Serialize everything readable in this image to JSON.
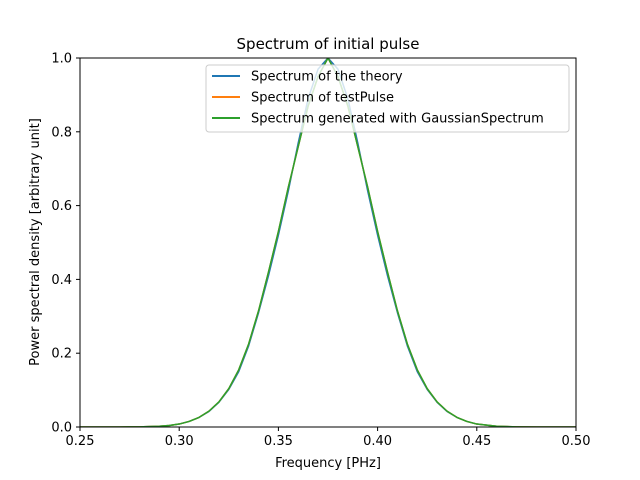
{
  "chart_data": {
    "type": "line",
    "title": "Spectrum of initial pulse",
    "xlabel": "Frequency [PHz]",
    "ylabel": "Power spectral density [arbitrary unit]",
    "xlim": [
      0.25,
      0.5
    ],
    "ylim": [
      0.0,
      1.0
    ],
    "xticks": [
      "0.25",
      "0.30",
      "0.35",
      "0.40",
      "0.45",
      "0.50"
    ],
    "yticks": [
      "0.0",
      "0.2",
      "0.4",
      "0.6",
      "0.8",
      "1.0"
    ],
    "grid": false,
    "legend_position": "top-right",
    "x": [
      0.25,
      0.26,
      0.27,
      0.28,
      0.29,
      0.295,
      0.3,
      0.305,
      0.31,
      0.315,
      0.32,
      0.325,
      0.33,
      0.335,
      0.34,
      0.345,
      0.35,
      0.355,
      0.36,
      0.365,
      0.37,
      0.375,
      0.38,
      0.385,
      0.39,
      0.395,
      0.4,
      0.405,
      0.41,
      0.415,
      0.42,
      0.425,
      0.43,
      0.435,
      0.44,
      0.445,
      0.45,
      0.46,
      0.47,
      0.48,
      0.49,
      0.5
    ],
    "series": [
      {
        "name": "Spectrum of the theory",
        "color": "#1f77b4",
        "values": [
          0.0,
          0.0,
          0.0,
          0.0005,
          0.002,
          0.004,
          0.008,
          0.015,
          0.026,
          0.042,
          0.067,
          0.102,
          0.15,
          0.22,
          0.31,
          0.41,
          0.52,
          0.64,
          0.77,
          0.89,
          0.97,
          1.0,
          0.97,
          0.89,
          0.77,
          0.64,
          0.52,
          0.41,
          0.31,
          0.22,
          0.15,
          0.102,
          0.067,
          0.042,
          0.026,
          0.015,
          0.008,
          0.002,
          0.0005,
          0.0,
          0.0,
          0.0
        ]
      },
      {
        "name": "Spectrum of testPulse",
        "color": "#ff7f0e",
        "values": [
          0.0,
          0.0,
          0.0,
          0.0005,
          0.002,
          0.004,
          0.008,
          0.015,
          0.026,
          0.043,
          0.068,
          0.104,
          0.155,
          0.225,
          0.315,
          0.42,
          0.53,
          0.65,
          0.76,
          0.87,
          0.95,
          1.0,
          0.95,
          0.87,
          0.76,
          0.65,
          0.53,
          0.42,
          0.315,
          0.225,
          0.155,
          0.104,
          0.068,
          0.043,
          0.026,
          0.015,
          0.008,
          0.002,
          0.0005,
          0.0,
          0.0,
          0.0
        ]
      },
      {
        "name": "Spectrum generated with GaussianSpectrum",
        "color": "#2ca02c",
        "values": [
          0.0,
          0.0,
          0.0,
          0.0005,
          0.002,
          0.004,
          0.008,
          0.015,
          0.026,
          0.043,
          0.068,
          0.104,
          0.155,
          0.225,
          0.315,
          0.42,
          0.53,
          0.65,
          0.76,
          0.87,
          0.95,
          1.0,
          0.95,
          0.87,
          0.76,
          0.65,
          0.53,
          0.42,
          0.315,
          0.225,
          0.155,
          0.104,
          0.068,
          0.043,
          0.026,
          0.015,
          0.008,
          0.002,
          0.0005,
          0.0,
          0.0,
          0.0
        ]
      }
    ]
  }
}
